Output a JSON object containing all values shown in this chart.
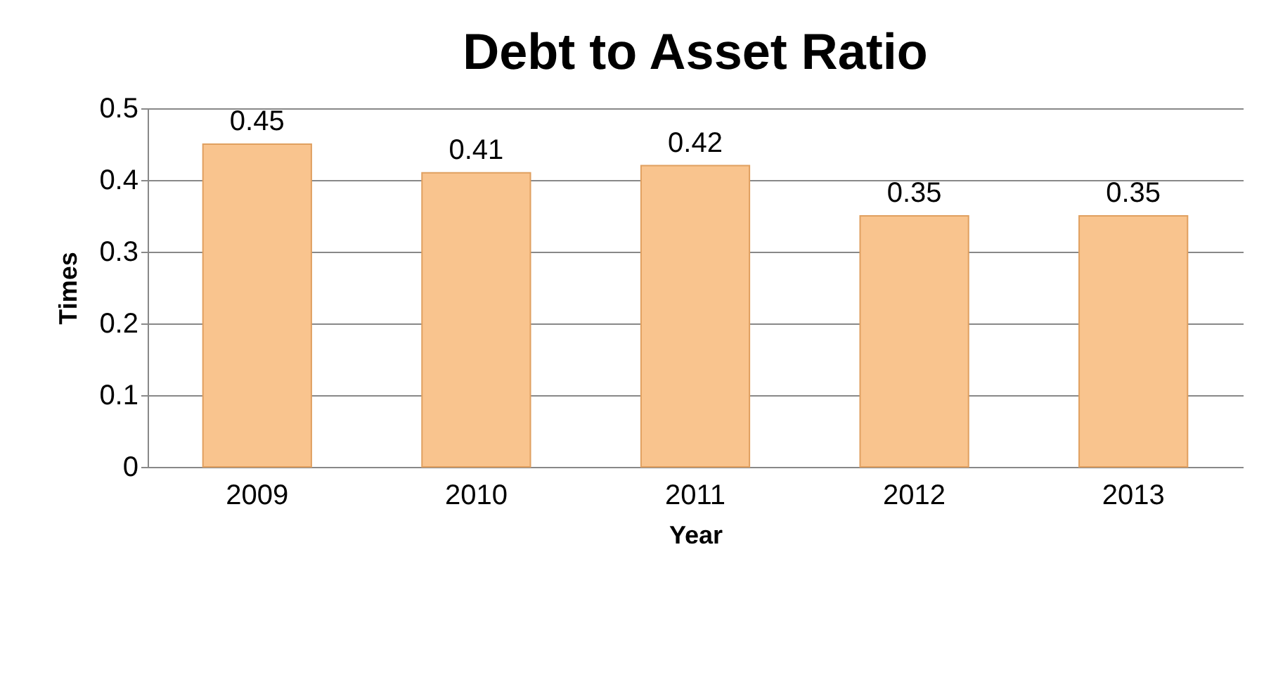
{
  "chart_data": {
    "type": "bar",
    "title": "Debt to Asset Ratio",
    "xlabel": "Year",
    "ylabel": "Times",
    "categories": [
      "2009",
      "2010",
      "2011",
      "2012",
      "2013"
    ],
    "values": [
      0.45,
      0.41,
      0.42,
      0.35,
      0.35
    ],
    "color": "#f9c48e",
    "ylim": [
      0,
      0.5
    ],
    "yticks": [
      0,
      0.1,
      0.2,
      0.3,
      0.4,
      0.5
    ],
    "grid": "y",
    "data_labels": true
  }
}
